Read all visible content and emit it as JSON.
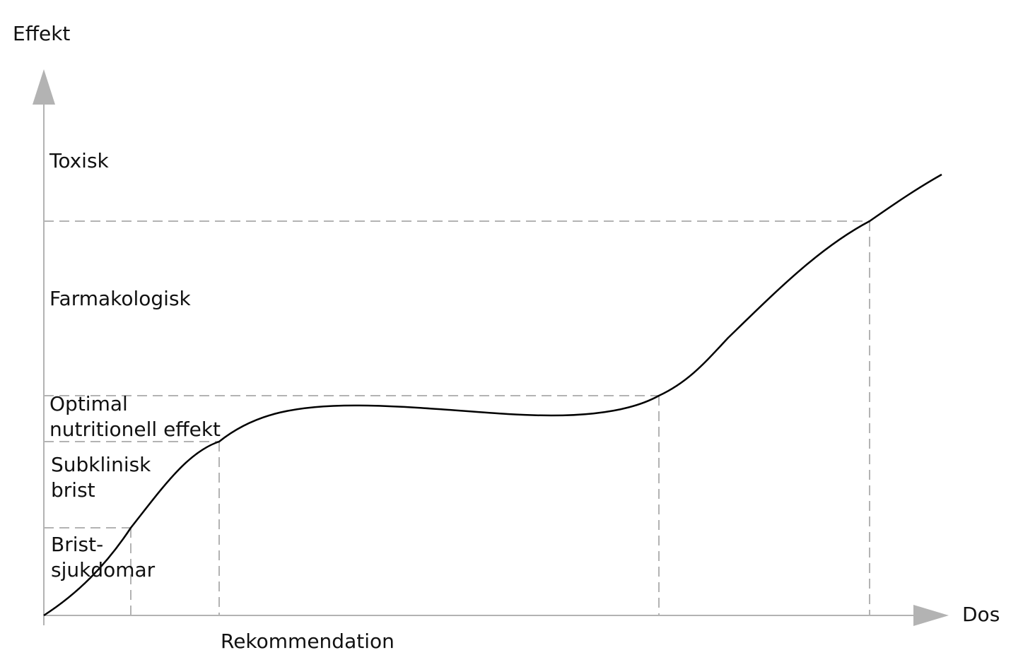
{
  "axes": {
    "y_label": "Effekt",
    "x_label": "Dos",
    "x_marker_label": "Rekommendation"
  },
  "zones": {
    "toxisk": "Toxisk",
    "farmakologisk": "Farmakologisk",
    "optimal_line1": "Optimal",
    "optimal_line2": "nutritionell effekt",
    "subklinisk_line1": "Subklinisk",
    "subklinisk_line2": "brist",
    "brist_line1": "Brist-",
    "brist_line2": "sjukdomar"
  },
  "colors": {
    "axis": "#b3b3b3",
    "dashed": "#b3b3b3",
    "curve": "#000000",
    "text": "#111111"
  }
}
